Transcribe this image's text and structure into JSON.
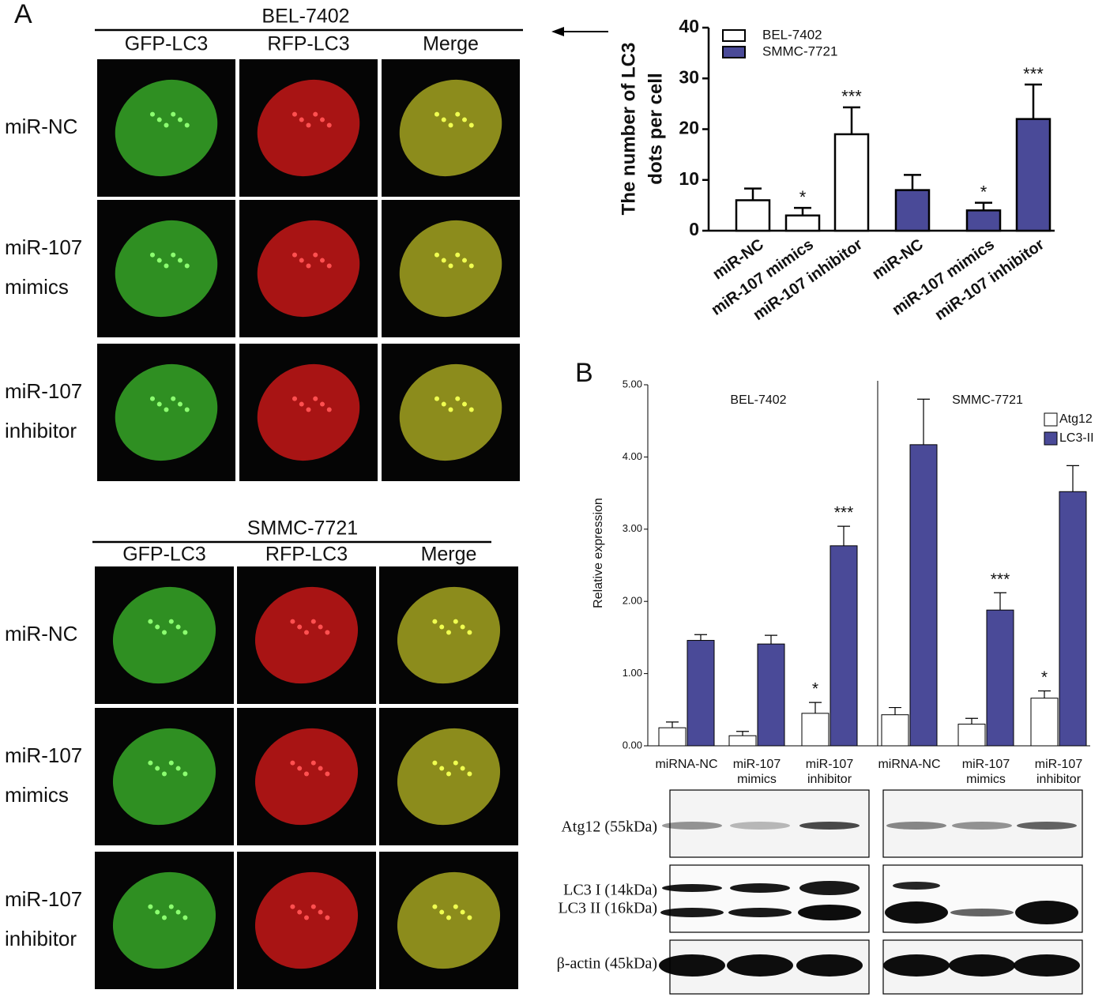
{
  "panel_labels": [
    "A",
    "B"
  ],
  "imaging": [
    {
      "title": "BEL-7402",
      "columns": [
        "GFP-LC3",
        "RFP-LC3",
        "Merge"
      ],
      "rows": [
        [
          "miR-NC"
        ],
        [
          "miR-107",
          "mimics"
        ],
        [
          "miR-107",
          "inhibitor"
        ]
      ]
    },
    {
      "title": "SMMC-7721",
      "columns": [
        "GFP-LC3",
        "RFP-LC3",
        "Merge"
      ],
      "rows": [
        [
          "miR-NC"
        ],
        [
          "miR-107",
          "mimics"
        ],
        [
          "miR-107",
          "inhibitor"
        ]
      ]
    }
  ],
  "chart_data": [
    {
      "type": "bar",
      "ylabel": [
        "The number of LC3",
        "dots per cell"
      ],
      "categories": [
        "miR-NC",
        "miR-107 mimics",
        "miR-107 inhibitor",
        "miR-NC",
        "miR-107 mimics",
        "miR-107 inhibitor"
      ],
      "series": [
        {
          "name": "BEL-7402",
          "color": "#ffffff",
          "values": [
            6,
            3,
            19,
            null,
            null,
            null
          ],
          "errors": [
            2.3,
            1.5,
            5.3,
            null,
            null,
            null
          ],
          "significance": [
            null,
            "*",
            "***",
            null,
            null,
            null
          ]
        },
        {
          "name": "SMMC-7721",
          "color": "#4a4a98",
          "values": [
            null,
            null,
            null,
            8,
            4,
            22
          ],
          "errors": [
            null,
            null,
            null,
            3,
            1.5,
            6.8
          ],
          "significance": [
            null,
            null,
            null,
            null,
            "*",
            "***"
          ]
        }
      ],
      "ylim": [
        0,
        40
      ],
      "yticks": [
        0,
        10,
        20,
        30,
        40
      ],
      "legend": "upper left"
    },
    {
      "type": "grouped-bar",
      "ylabel": "Relative expression",
      "group_labels": [
        "BEL-7402",
        "SMMC-7721"
      ],
      "categories": [
        [
          "miRNA-NC"
        ],
        [
          "miR-107",
          "mimics"
        ],
        [
          "miR-107",
          "inhibitor"
        ],
        [
          "miRNA-NC"
        ],
        [
          "miR-107",
          "mimics"
        ],
        [
          "miR-107",
          "inhibitor"
        ]
      ],
      "series": [
        {
          "name": "Atg12",
          "color": "#ffffff",
          "values": [
            0.25,
            0.14,
            0.45,
            0.43,
            0.3,
            0.66
          ],
          "errors": [
            0.08,
            0.06,
            0.15,
            0.1,
            0.08,
            0.1
          ],
          "significance": [
            null,
            null,
            "*",
            null,
            null,
            "*"
          ]
        },
        {
          "name": "LC3-II",
          "color": "#4a4a98",
          "values": [
            1.46,
            1.41,
            2.77,
            4.17,
            1.88,
            3.52
          ],
          "errors": [
            0.08,
            0.12,
            0.27,
            0.63,
            0.24,
            0.36
          ],
          "significance": [
            null,
            null,
            "***",
            null,
            "***",
            null
          ]
        }
      ],
      "ylim": [
        0,
        5
      ],
      "yticks": [
        {
          "value": 0,
          "label": "0.00"
        },
        {
          "value": 1,
          "label": "1.00"
        },
        {
          "value": 2,
          "label": "2.00"
        },
        {
          "value": 3,
          "label": "3.00"
        },
        {
          "value": 4,
          "label": "4.00"
        },
        {
          "value": 5,
          "label": "5.00"
        }
      ],
      "legend": "upper right"
    }
  ],
  "blot": {
    "labels": [
      "Atg12 (55kDa)",
      "LC3 I (14kDa)",
      "LC3 II (16kDa)",
      "β-actin (45kDa)"
    ]
  }
}
